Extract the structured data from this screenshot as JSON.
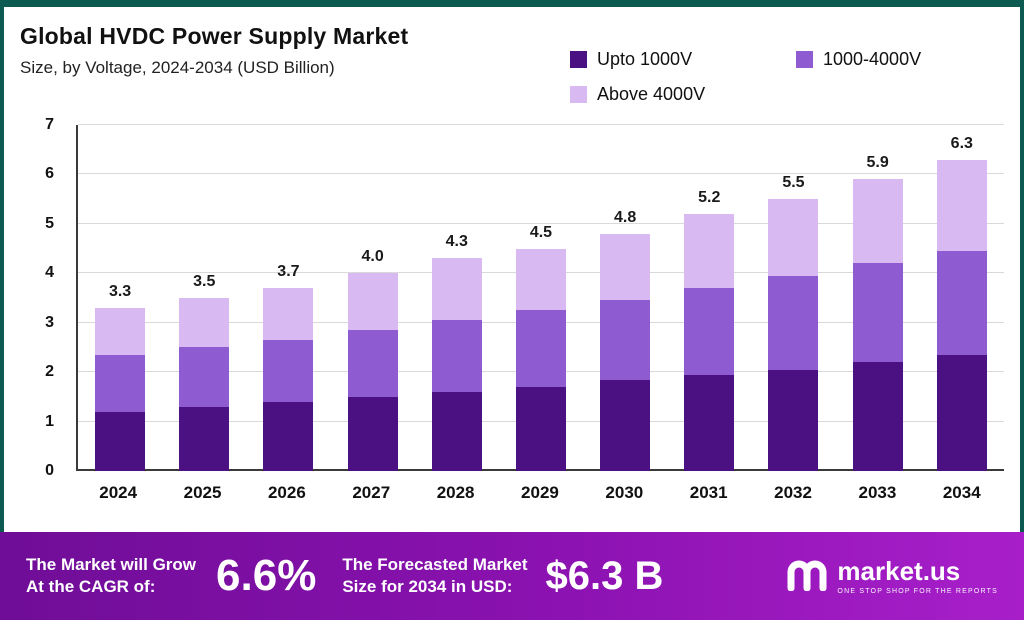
{
  "page": {
    "title": "Global HVDC Power Supply Market",
    "subtitle": "Size, by Voltage, 2024-2034 (USD Billion)"
  },
  "legend": [
    {
      "label": "Upto 1000V",
      "color": "#4b1182"
    },
    {
      "label": "1000-4000V",
      "color": "#8f5bd0"
    },
    {
      "label": "Above 4000V",
      "color": "#d9b9f1"
    }
  ],
  "chart_data": {
    "type": "bar",
    "stacked": true,
    "title": "Global HVDC Power Supply Market Size, by Voltage, 2024-2034 (USD Billion)",
    "categories": [
      "2024",
      "2025",
      "2026",
      "2027",
      "2028",
      "2029",
      "2030",
      "2031",
      "2032",
      "2033",
      "2034"
    ],
    "series": [
      {
        "name": "Upto 1000V",
        "color": "#4b1182",
        "values": [
          1.2,
          1.3,
          1.4,
          1.5,
          1.6,
          1.7,
          1.85,
          1.95,
          2.05,
          2.2,
          2.35
        ]
      },
      {
        "name": "1000-4000V",
        "color": "#8f5bd0",
        "values": [
          1.15,
          1.2,
          1.25,
          1.35,
          1.45,
          1.55,
          1.6,
          1.75,
          1.9,
          2.0,
          2.1
        ]
      },
      {
        "name": "Above 4000V",
        "color": "#d9b9f1",
        "values": [
          0.95,
          1.0,
          1.05,
          1.15,
          1.25,
          1.25,
          1.35,
          1.5,
          1.55,
          1.7,
          1.85
        ]
      }
    ],
    "totals": [
      3.3,
      3.5,
      3.7,
      4.0,
      4.3,
      4.5,
      4.8,
      5.2,
      5.5,
      5.9,
      6.3
    ],
    "xlabel": "",
    "ylabel": "",
    "ylim": [
      0,
      7
    ],
    "yticks": [
      0,
      1,
      2,
      3,
      4,
      5,
      6,
      7
    ],
    "grid": true,
    "legend_position": "top-right"
  },
  "banner": {
    "cagr_label_line1": "The Market will Grow",
    "cagr_label_line2": "At the CAGR of:",
    "cagr_value": "6.6%",
    "forecast_label_line1": "The Forecasted Market",
    "forecast_label_line2": "Size for 2034 in USD:",
    "forecast_value": "$6.3 B",
    "brand": "market.us",
    "brand_tagline": "ONE STOP SHOP FOR THE REPORTS"
  }
}
